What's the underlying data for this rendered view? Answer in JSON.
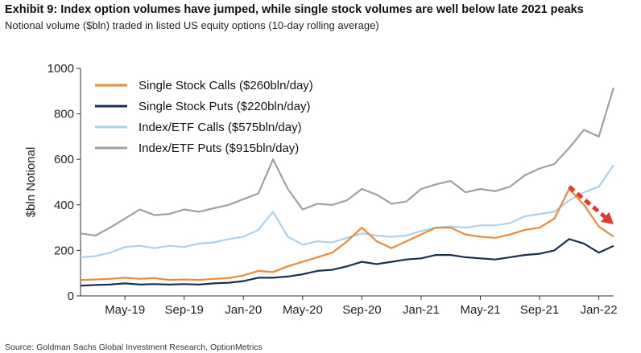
{
  "title": "Exhibit 9: Index option volumes have jumped, while single stock volumes are well below late 2021 peaks",
  "subtitle": "Notional volume ($bln) traded in listed US equity options (10-day rolling average)",
  "source": "Source: Goldman Sachs Global Investment Research, OptionMetrics",
  "chart_data": {
    "type": "line",
    "ylabel": "$bln Notional",
    "ylim": [
      0,
      1000
    ],
    "yticks": [
      0,
      200,
      400,
      600,
      800,
      1000
    ],
    "xlim": [
      "2019-02",
      "2022-02"
    ],
    "xtick_labels": [
      "May-19",
      "Sep-19",
      "Jan-20",
      "May-20",
      "Sep-20",
      "Jan-21",
      "May-21",
      "Sep-21",
      "Jan-22"
    ],
    "xtick_dates": [
      "2019-05",
      "2019-09",
      "2020-01",
      "2020-05",
      "2020-09",
      "2021-01",
      "2021-05",
      "2021-09",
      "2022-01"
    ],
    "legend_position": "top-left",
    "series": [
      {
        "name": "Index/ETF Puts ($915bln/day)",
        "color": "#a0a0a0",
        "points": [
          [
            "2019-02",
            275
          ],
          [
            "2019-03",
            265
          ],
          [
            "2019-04",
            300
          ],
          [
            "2019-05",
            340
          ],
          [
            "2019-06",
            380
          ],
          [
            "2019-07",
            355
          ],
          [
            "2019-08",
            360
          ],
          [
            "2019-09",
            380
          ],
          [
            "2019-10",
            370
          ],
          [
            "2019-11",
            385
          ],
          [
            "2019-12",
            400
          ],
          [
            "2020-01",
            425
          ],
          [
            "2020-02",
            450
          ],
          [
            "2020-03",
            600
          ],
          [
            "2020-04",
            470
          ],
          [
            "2020-05",
            380
          ],
          [
            "2020-06",
            405
          ],
          [
            "2020-07",
            400
          ],
          [
            "2020-08",
            420
          ],
          [
            "2020-09",
            470
          ],
          [
            "2020-10",
            445
          ],
          [
            "2020-11",
            405
          ],
          [
            "2020-12",
            415
          ],
          [
            "2021-01",
            470
          ],
          [
            "2021-02",
            490
          ],
          [
            "2021-03",
            505
          ],
          [
            "2021-04",
            455
          ],
          [
            "2021-05",
            470
          ],
          [
            "2021-06",
            460
          ],
          [
            "2021-07",
            480
          ],
          [
            "2021-08",
            530
          ],
          [
            "2021-09",
            560
          ],
          [
            "2021-10",
            580
          ],
          [
            "2021-11",
            650
          ],
          [
            "2021-12",
            730
          ],
          [
            "2022-01",
            700
          ],
          [
            "2022-02",
            915
          ]
        ]
      },
      {
        "name": "Index/ETF Calls ($575bln/day)",
        "color": "#a9d2ee",
        "points": [
          [
            "2019-02",
            170
          ],
          [
            "2019-03",
            175
          ],
          [
            "2019-04",
            190
          ],
          [
            "2019-05",
            215
          ],
          [
            "2019-06",
            220
          ],
          [
            "2019-07",
            210
          ],
          [
            "2019-08",
            220
          ],
          [
            "2019-09",
            215
          ],
          [
            "2019-10",
            230
          ],
          [
            "2019-11",
            235
          ],
          [
            "2019-12",
            250
          ],
          [
            "2020-01",
            260
          ],
          [
            "2020-02",
            290
          ],
          [
            "2020-03",
            370
          ],
          [
            "2020-04",
            260
          ],
          [
            "2020-05",
            225
          ],
          [
            "2020-06",
            240
          ],
          [
            "2020-07",
            235
          ],
          [
            "2020-08",
            255
          ],
          [
            "2020-09",
            275
          ],
          [
            "2020-10",
            265
          ],
          [
            "2020-11",
            260
          ],
          [
            "2020-12",
            265
          ],
          [
            "2021-01",
            285
          ],
          [
            "2021-02",
            300
          ],
          [
            "2021-03",
            305
          ],
          [
            "2021-04",
            300
          ],
          [
            "2021-05",
            310
          ],
          [
            "2021-06",
            310
          ],
          [
            "2021-07",
            320
          ],
          [
            "2021-08",
            350
          ],
          [
            "2021-09",
            360
          ],
          [
            "2021-10",
            370
          ],
          [
            "2021-11",
            420
          ],
          [
            "2021-12",
            455
          ],
          [
            "2022-01",
            480
          ],
          [
            "2022-02",
            575
          ]
        ]
      },
      {
        "name": "Single Stock Calls ($260bln/day)",
        "color": "#ed8a35",
        "points": [
          [
            "2019-02",
            70
          ],
          [
            "2019-03",
            72
          ],
          [
            "2019-04",
            75
          ],
          [
            "2019-05",
            80
          ],
          [
            "2019-06",
            75
          ],
          [
            "2019-07",
            78
          ],
          [
            "2019-08",
            70
          ],
          [
            "2019-09",
            72
          ],
          [
            "2019-10",
            70
          ],
          [
            "2019-11",
            75
          ],
          [
            "2019-12",
            78
          ],
          [
            "2020-01",
            90
          ],
          [
            "2020-02",
            110
          ],
          [
            "2020-03",
            105
          ],
          [
            "2020-04",
            130
          ],
          [
            "2020-05",
            150
          ],
          [
            "2020-06",
            170
          ],
          [
            "2020-07",
            190
          ],
          [
            "2020-08",
            240
          ],
          [
            "2020-09",
            300
          ],
          [
            "2020-10",
            240
          ],
          [
            "2020-11",
            210
          ],
          [
            "2020-12",
            240
          ],
          [
            "2021-01",
            270
          ],
          [
            "2021-02",
            300
          ],
          [
            "2021-03",
            300
          ],
          [
            "2021-04",
            270
          ],
          [
            "2021-05",
            260
          ],
          [
            "2021-06",
            255
          ],
          [
            "2021-07",
            270
          ],
          [
            "2021-08",
            290
          ],
          [
            "2021-09",
            300
          ],
          [
            "2021-10",
            340
          ],
          [
            "2021-11",
            470
          ],
          [
            "2021-12",
            400
          ],
          [
            "2022-01",
            305
          ],
          [
            "2022-02",
            260
          ]
        ]
      },
      {
        "name": "Single Stock Puts ($220bln/day)",
        "color": "#1a2f4f",
        "points": [
          [
            "2019-02",
            45
          ],
          [
            "2019-03",
            48
          ],
          [
            "2019-04",
            50
          ],
          [
            "2019-05",
            55
          ],
          [
            "2019-06",
            50
          ],
          [
            "2019-07",
            52
          ],
          [
            "2019-08",
            50
          ],
          [
            "2019-09",
            52
          ],
          [
            "2019-10",
            50
          ],
          [
            "2019-11",
            55
          ],
          [
            "2019-12",
            58
          ],
          [
            "2020-01",
            65
          ],
          [
            "2020-02",
            80
          ],
          [
            "2020-03",
            80
          ],
          [
            "2020-04",
            85
          ],
          [
            "2020-05",
            95
          ],
          [
            "2020-06",
            110
          ],
          [
            "2020-07",
            115
          ],
          [
            "2020-08",
            130
          ],
          [
            "2020-09",
            150
          ],
          [
            "2020-10",
            140
          ],
          [
            "2020-11",
            150
          ],
          [
            "2020-12",
            160
          ],
          [
            "2021-01",
            165
          ],
          [
            "2021-02",
            180
          ],
          [
            "2021-03",
            180
          ],
          [
            "2021-04",
            170
          ],
          [
            "2021-05",
            165
          ],
          [
            "2021-06",
            160
          ],
          [
            "2021-07",
            170
          ],
          [
            "2021-08",
            180
          ],
          [
            "2021-09",
            185
          ],
          [
            "2021-10",
            200
          ],
          [
            "2021-11",
            250
          ],
          [
            "2021-12",
            230
          ],
          [
            "2022-01",
            190
          ],
          [
            "2022-02",
            220
          ]
        ]
      }
    ],
    "legend_order": [
      2,
      3,
      1,
      0
    ],
    "annotation": {
      "type": "arrow",
      "color": "#e23a2f",
      "from": [
        "2021-11",
        480
      ],
      "to": [
        "2022-02",
        315
      ]
    }
  }
}
